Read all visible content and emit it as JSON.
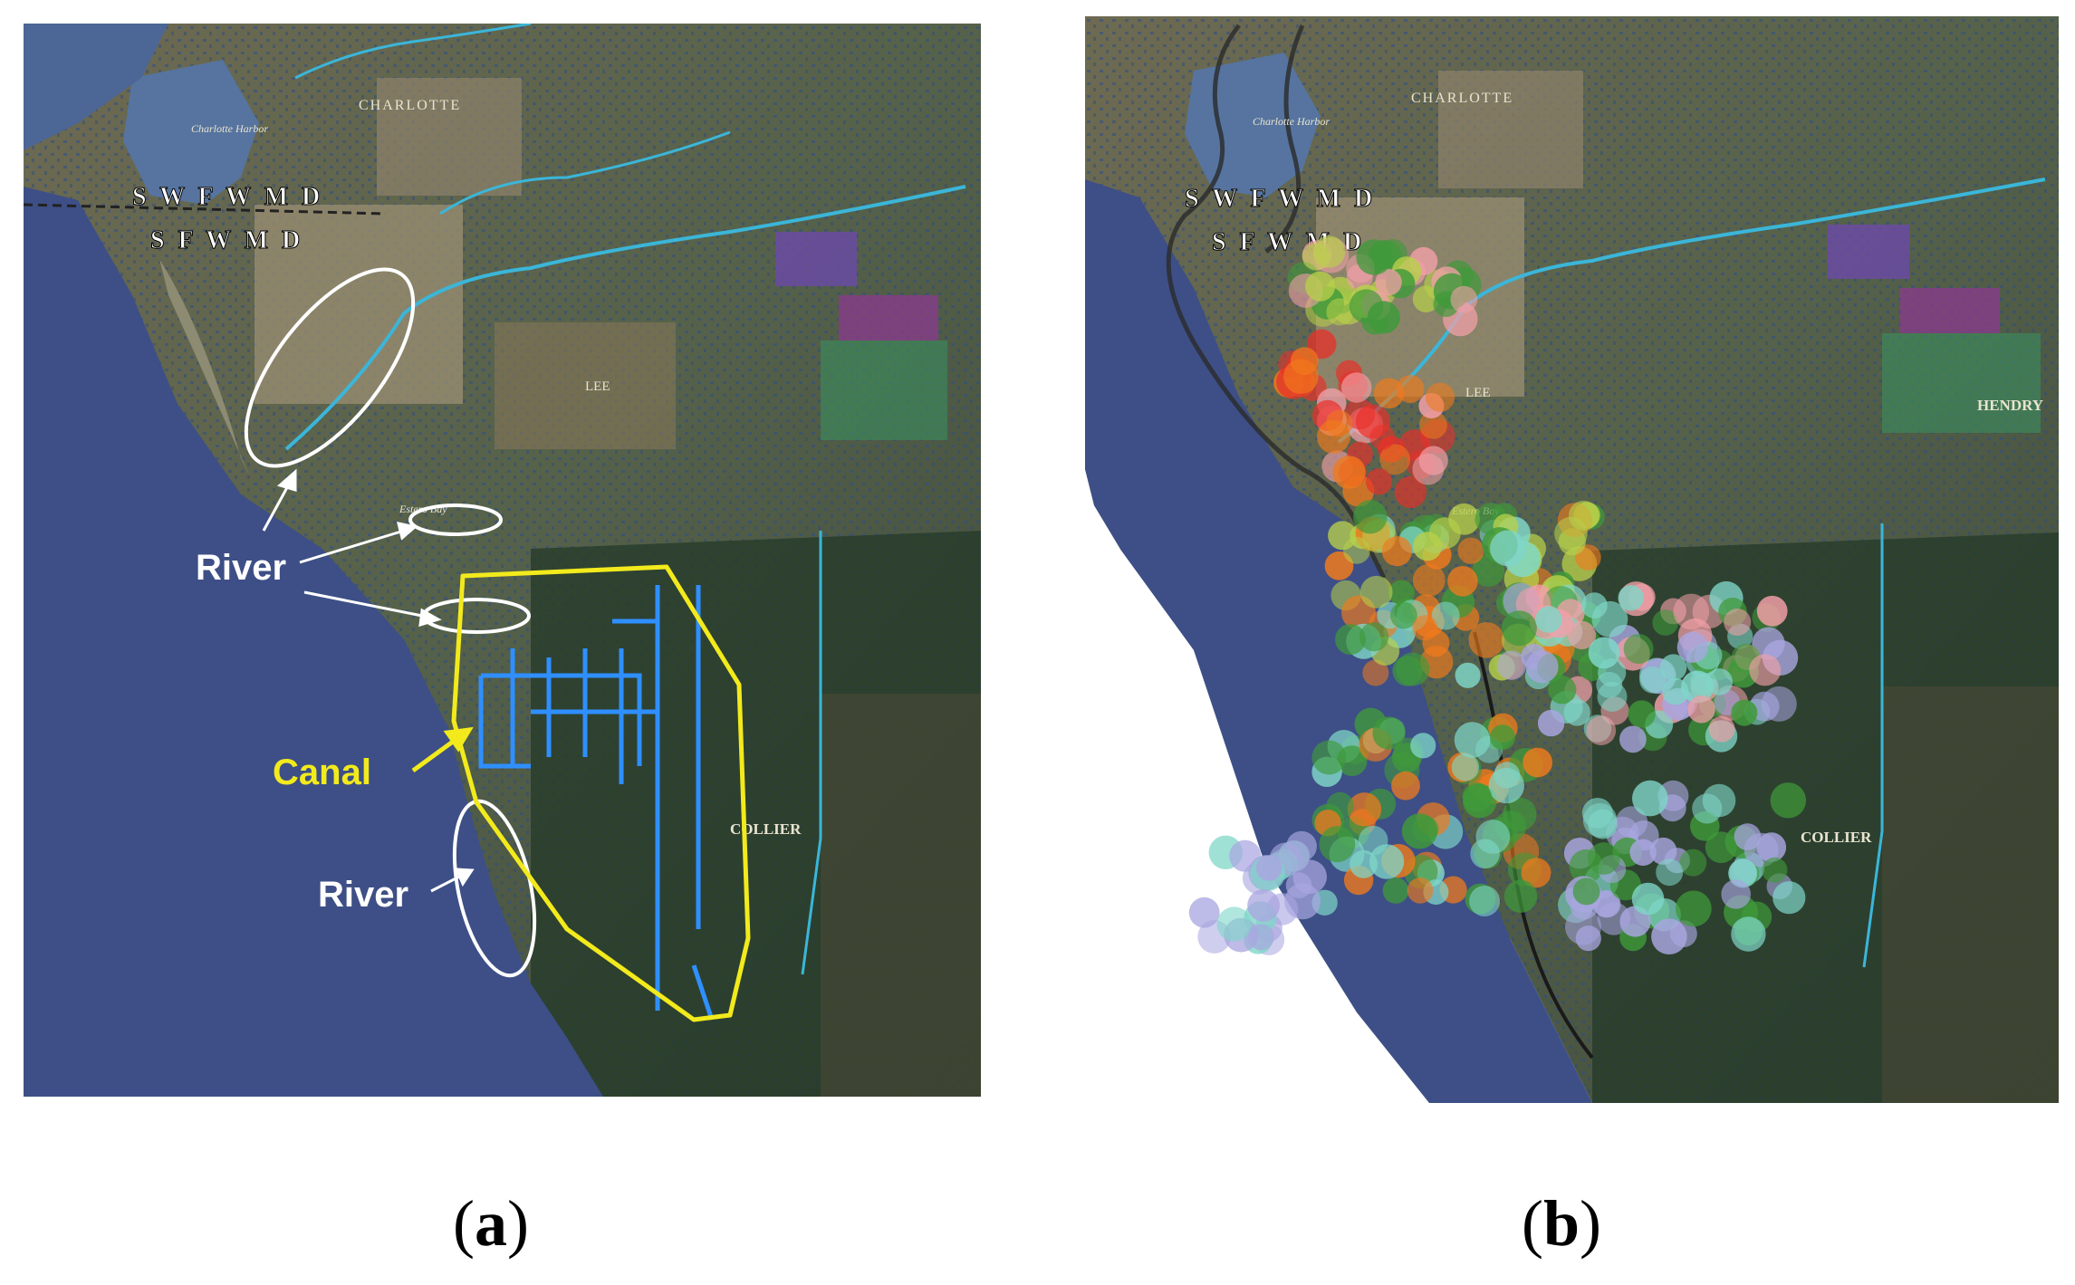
{
  "panel_a": {
    "caption_open": "(",
    "caption_letter": "a",
    "caption_close": ")",
    "district_top": "S W F W M D",
    "district_bottom": "S F W M D",
    "county_north": "CHARLOTTE",
    "county_south": "COLLIER",
    "harbor_label": "Charlotte Harbor",
    "bay_label": "Estero Bay",
    "town_label": "LEE",
    "annotations": {
      "river_upper": "River",
      "canal": "Canal",
      "river_lower": "River"
    },
    "colors": {
      "river_marker": "#ffffff",
      "canal_marker": "#f2ea1c",
      "canal_network": "#2f8fff",
      "gulf_water": "#3d4f86"
    }
  },
  "panel_b": {
    "caption_open": "(",
    "caption_letter": "b",
    "caption_close": ")",
    "district_top": "S W F W M D",
    "district_bottom": "S F W M D",
    "county_north": "CHARLOTTE",
    "county_east": "HENDRY",
    "county_south": "COLLIER",
    "harbor_label": "Charlotte Harbor",
    "bay_label": "Estero Bay",
    "town_label": "LEE",
    "colors": {
      "cluster_red": "#e8302a",
      "cluster_orange": "#f07a1c",
      "cluster_green": "#3f9a3a",
      "cluster_lime": "#b7d04a",
      "cluster_pink": "#f2a0a8",
      "cluster_teal": "#7fd6c8",
      "cluster_lavender": "#a9a6e0"
    }
  }
}
